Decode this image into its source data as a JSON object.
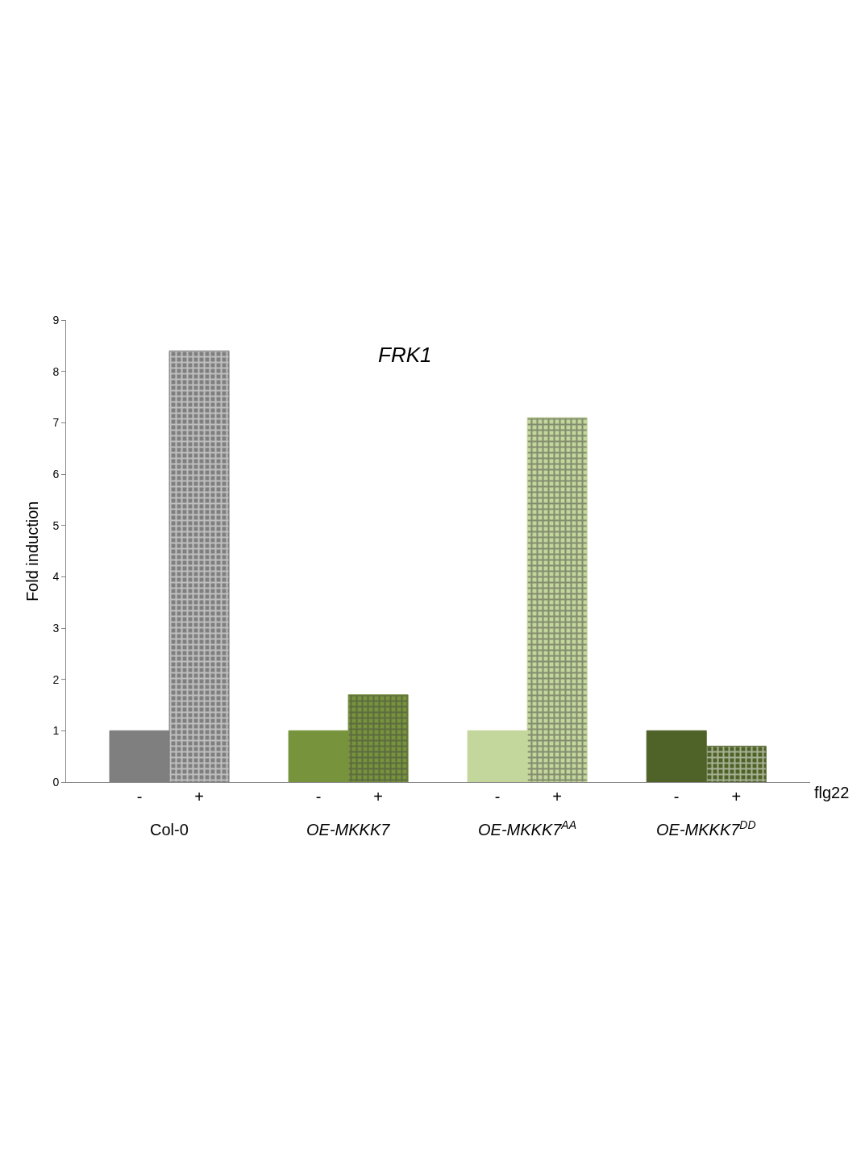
{
  "chart_data": {
    "type": "bar",
    "title": "FRK1",
    "xlabel": "flg22",
    "ylabel": "Fold induction",
    "categories": [
      "-",
      "+",
      "-",
      "+",
      "-",
      "+",
      "-",
      "+"
    ],
    "values": [
      1.0,
      8.4,
      1.0,
      1.7,
      1.0,
      7.1,
      1.0,
      0.7
    ],
    "colors": [
      "#7f7f7f",
      "#7f7f7f",
      "#77933c",
      "#77933c",
      "#c3d69b",
      "#c3d69b",
      "#4f6228",
      "#4f6228"
    ],
    "ylim": [
      0,
      9
    ],
    "yticks": [
      0,
      1,
      2,
      3,
      4,
      5,
      6,
      7,
      8,
      9
    ],
    "legend": false,
    "annotations": [
      "Col-0",
      "OE-MKKK7",
      "OE-MKKK7$^{AA}$",
      "OE-MKKK7$^{DD}$"
    ]
  }
}
